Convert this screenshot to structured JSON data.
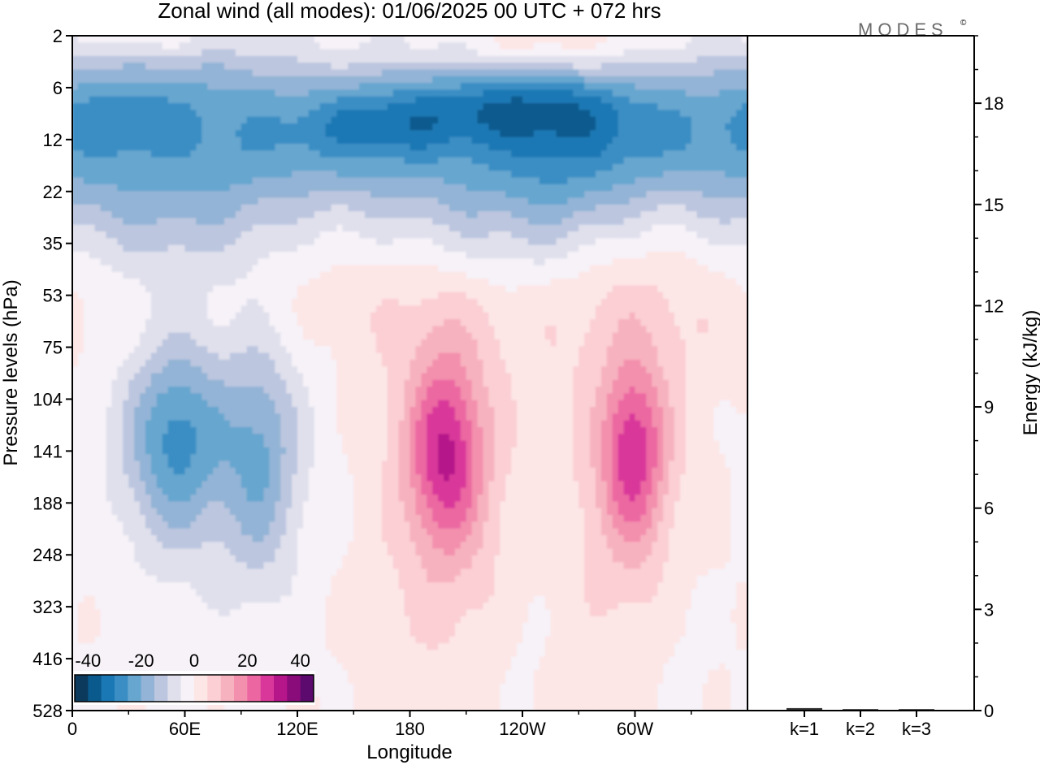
{
  "title": "Zonal wind (all modes):  01/06/2025  00 UTC  + 072 hrs",
  "logo": "MODES",
  "logo_mark": "©",
  "chart_data": [
    {
      "type": "heatmap",
      "title": "Zonal wind (all modes):  01/06/2025  00 UTC  + 072 hrs",
      "xlabel": "Longitude",
      "ylabel": "Pressure levels (hPa)",
      "x_ticks": [
        "0",
        "60E",
        "120E",
        "180",
        "120W",
        "60W"
      ],
      "x_tick_degrees": [
        0,
        60,
        120,
        180,
        240,
        300
      ],
      "xlim": [
        0,
        360
      ],
      "y_ticks": [
        "2",
        "6",
        "12",
        "22",
        "35",
        "53",
        "75",
        "104",
        "141",
        "188",
        "248",
        "323",
        "416",
        "528"
      ],
      "y_axis": "model levels (top 2 hPa, bottom 528 hPa)",
      "colorbar": {
        "ticks": [
          "-40",
          "-20",
          "0",
          "20",
          "40"
        ],
        "range": [
          -45,
          45
        ],
        "step": 5,
        "colors": [
          "#0c3a5c",
          "#0a5a8e",
          "#1a78b4",
          "#3a8ec4",
          "#66a6cf",
          "#93b4d6",
          "#bcc6df",
          "#e0e0ec",
          "#f6f2f8",
          "#fde6e6",
          "#fbcfd4",
          "#f7b2bf",
          "#f390ad",
          "#ec67a1",
          "#d9389a",
          "#b5168a",
          "#8a0b7a",
          "#5c0a6e"
        ]
      },
      "field_features": [
        {
          "name": "stratospheric easterly jet",
          "center_lon": 240,
          "center_level": "12",
          "value": -36
        },
        {
          "name": "upper easterly band",
          "center_lon": 180,
          "center_level": "12",
          "value": -30
        },
        {
          "name": "westerly cap",
          "center_lon": 250,
          "center_level": "2",
          "value": 12
        },
        {
          "name": "easterly core",
          "center_lon": 50,
          "center_level": "141",
          "value": -22
        },
        {
          "name": "easterly core",
          "center_lon": 100,
          "center_level": "141",
          "value": -18
        },
        {
          "name": "westerly jet",
          "center_lon": 200,
          "center_level": "141",
          "value": 25
        },
        {
          "name": "westerly jet",
          "center_lon": 300,
          "center_level": "141",
          "value": 23
        }
      ]
    },
    {
      "type": "bar",
      "categories": [
        "k=1",
        "k=2",
        "k=3"
      ],
      "values": [
        0.05,
        0.02,
        0.02
      ],
      "ylabel": "Energy (kJ/kg)",
      "y_ticks": [
        "0",
        "3",
        "6",
        "9",
        "12",
        "15",
        "18"
      ],
      "ylim": [
        0,
        20
      ]
    }
  ]
}
